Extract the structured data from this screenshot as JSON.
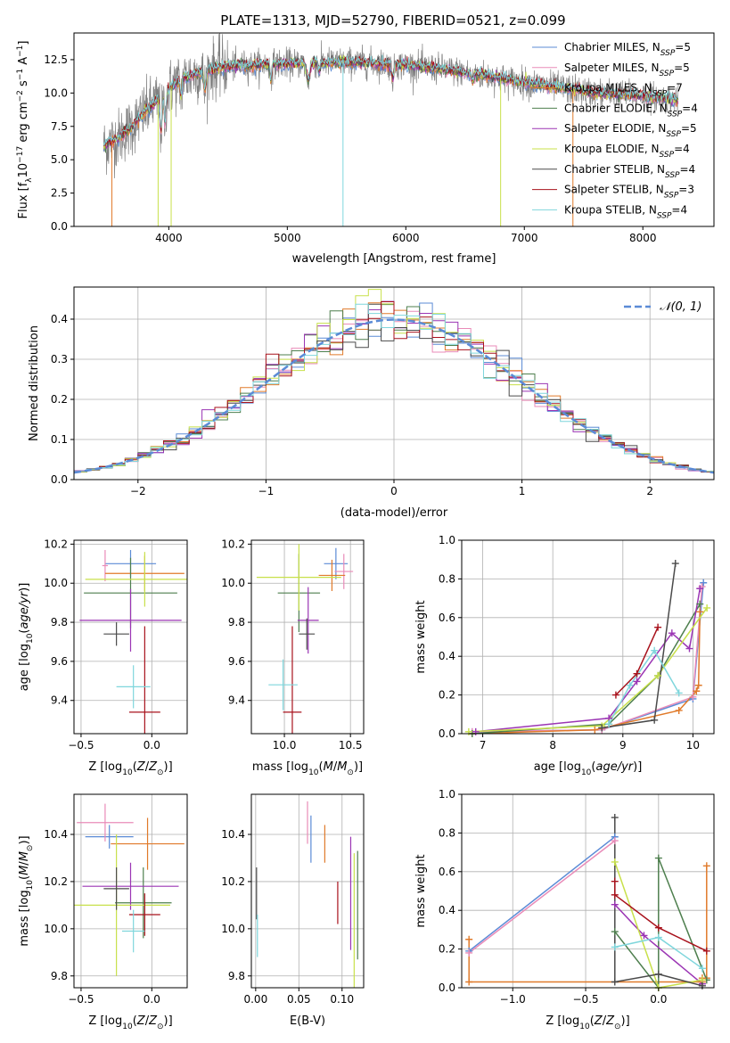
{
  "figure_title": "PLATE=1313, MJD=52790, FIBERID=0521, z=0.099",
  "colors": {
    "Chabrier MILES": "#5b8bd6",
    "Salpeter MILES": "#e98bb8",
    "Kroupa MILES": "#e07a2a",
    "Chabrier ELODIE": "#4e7f4e",
    "Salpeter ELODIE": "#9b35b4",
    "Kroupa ELODIE": "#c8e04a",
    "Chabrier STELIB": "#4a4a4a",
    "Salpeter STELIB": "#a8121c",
    "Kroupa STELIB": "#7fd6dc",
    "gaussian": "#5b8bd6"
  },
  "chart_data": [
    {
      "id": "spectrum",
      "type": "line",
      "title": "PLATE=1313, MJD=52790, FIBERID=0521, z=0.099",
      "xlabel": "wavelength [Angstrom, rest frame]",
      "ylabel": "Flux [fλ10⁻¹⁷ erg cm⁻² s⁻¹ A⁻¹]",
      "xlim": [
        3200,
        8600
      ],
      "ylim": [
        0,
        14.5
      ],
      "xticks": [
        4000,
        5000,
        6000,
        7000,
        8000
      ],
      "yticks": [
        0.0,
        2.5,
        5.0,
        7.5,
        10.0,
        12.5
      ],
      "xtick_labels": [
        "4000",
        "5000",
        "6000",
        "7000",
        "8000"
      ],
      "ytick_labels": [
        "0.0",
        "2.5",
        "5.0",
        "7.5",
        "10.0",
        "12.5"
      ],
      "grid": false,
      "legend_position": "right",
      "continuum": {
        "x": [
          3450,
          3600,
          3700,
          3800,
          3900,
          4000,
          4100,
          4300,
          4500,
          4700,
          5000,
          5300,
          5600,
          6000,
          6300,
          6600,
          7000,
          7300,
          7600,
          8000,
          8300
        ],
        "y": [
          6.0,
          6.8,
          7.6,
          8.6,
          9.4,
          10.3,
          11.0,
          11.7,
          12.0,
          12.1,
          12.2,
          12.3,
          12.3,
          12.1,
          11.8,
          11.4,
          10.8,
          10.4,
          10.0,
          9.8,
          9.5
        ]
      },
      "series": [
        {
          "name": "Chabrier MILES",
          "legend": "Chabrier MILES, N_SSP=5"
        },
        {
          "name": "Salpeter MILES",
          "legend": "Salpeter MILES, N_SSP=5"
        },
        {
          "name": "Kroupa MILES",
          "legend": "Kroupa MILES, N_SSP=7"
        },
        {
          "name": "Chabrier ELODIE",
          "legend": "Chabrier ELODIE, N_SSP=4"
        },
        {
          "name": "Salpeter ELODIE",
          "legend": "Salpeter ELODIE, N_SSP=5"
        },
        {
          "name": "Kroupa ELODIE",
          "legend": "Kroupa ELODIE, N_SSP=4"
        },
        {
          "name": "Chabrier STELIB",
          "legend": "Chabrier STELIB, N_SSP=4"
        },
        {
          "name": "Salpeter STELIB",
          "legend": "Salpeter STELIB, N_SSP=3"
        },
        {
          "name": "Kroupa STELIB",
          "legend": "Kroupa STELIB, N_SSP=4"
        }
      ],
      "drops": [
        {
          "x": 3520,
          "series": "Kroupa MILES"
        },
        {
          "x": 3910,
          "series": "Kroupa ELODIE"
        },
        {
          "x": 4020,
          "series": "Kroupa ELODIE"
        },
        {
          "x": 5470,
          "series": "Kroupa STELIB"
        },
        {
          "x": 6800,
          "series": "Kroupa ELODIE"
        },
        {
          "x": 7410,
          "series": "Kroupa MILES"
        }
      ]
    },
    {
      "id": "residuals",
      "type": "histogram",
      "xlabel": "(data-model)/error",
      "ylabel": "Normed distribution",
      "xlim": [
        -2.5,
        2.5
      ],
      "ylim": [
        0,
        0.48
      ],
      "xticks": [
        -2,
        -1,
        0,
        1,
        2
      ],
      "yticks": [
        0.0,
        0.1,
        0.2,
        0.3,
        0.4
      ],
      "xtick_labels": [
        "−2",
        "−1",
        "0",
        "1",
        "2"
      ],
      "ytick_labels": [
        "0.0",
        "0.1",
        "0.2",
        "0.3",
        "0.4"
      ],
      "grid": true,
      "legend": "𝒩(0, 1)",
      "legend_position": "top-right",
      "bin_width": 0.1,
      "gaussian": {
        "mean": 0,
        "sigma": 1
      }
    },
    {
      "id": "age-vs-Z",
      "type": "errorbar",
      "xlabel": "Z [log10(Z/Z⊙)]",
      "ylabel": "age [log10(age/yr)]",
      "xlim": [
        -0.55,
        0.25
      ],
      "ylim": [
        9.23,
        10.22
      ],
      "xticks": [
        -0.5,
        0.0
      ],
      "yticks": [
        9.4,
        9.6,
        9.8,
        10.0,
        10.2
      ],
      "xtick_labels": [
        "−0.5",
        "0.0"
      ],
      "ytick_labels": [
        "9.4",
        "9.6",
        "9.8",
        "10.0",
        "10.2"
      ],
      "grid": true,
      "points": [
        {
          "series": "Chabrier MILES",
          "x": -0.15,
          "xerr": 0.18,
          "y": 10.1,
          "yerr": 0.07
        },
        {
          "series": "Salpeter MILES",
          "x": -0.33,
          "xerr": 0.02,
          "y": 10.09,
          "yerr": 0.08
        },
        {
          "series": "Kroupa MILES",
          "x": -0.05,
          "xerr": 0.28,
          "y": 10.05,
          "yerr": 0.09
        },
        {
          "series": "Chabrier ELODIE",
          "x": -0.15,
          "xerr": 0.33,
          "y": 9.95,
          "yerr": 0.18
        },
        {
          "series": "Salpeter ELODIE",
          "x": -0.15,
          "xerr": 0.36,
          "y": 9.81,
          "yerr": 0.16
        },
        {
          "series": "Kroupa ELODIE",
          "x": -0.05,
          "xerr": 0.42,
          "y": 10.02,
          "yerr": 0.14
        },
        {
          "series": "Chabrier STELIB",
          "x": -0.25,
          "xerr": 0.09,
          "y": 9.74,
          "yerr": 0.06
        },
        {
          "series": "Salpeter STELIB",
          "x": -0.05,
          "xerr": 0.11,
          "y": 9.34,
          "yerr": 0.44
        },
        {
          "series": "Kroupa STELIB",
          "x": -0.13,
          "xerr": 0.12,
          "y": 9.47,
          "yerr": 0.11
        }
      ]
    },
    {
      "id": "age-vs-mass",
      "type": "errorbar",
      "xlabel": "mass [log10(M/M⊙)]",
      "ylabel": "",
      "xlim": [
        9.75,
        10.6
      ],
      "ylim": [
        9.23,
        10.22
      ],
      "xticks": [
        10.0,
        10.5
      ],
      "yticks": [
        9.4,
        9.6,
        9.8,
        10.0,
        10.2
      ],
      "xtick_labels": [
        "10.0",
        "10.5"
      ],
      "ytick_labels": [
        "9.4",
        "9.6",
        "9.8",
        "10.0",
        "10.2"
      ],
      "grid": true,
      "points": [
        {
          "series": "Chabrier MILES",
          "x": 10.39,
          "xerr": 0.09,
          "y": 10.1,
          "yerr": 0.08
        },
        {
          "series": "Salpeter MILES",
          "x": 10.45,
          "xerr": 0.07,
          "y": 10.06,
          "yerr": 0.09
        },
        {
          "series": "Kroupa MILES",
          "x": 10.36,
          "xerr": 0.1,
          "y": 10.04,
          "yerr": 0.08
        },
        {
          "series": "Chabrier ELODIE",
          "x": 10.11,
          "xerr": 0.16,
          "y": 9.95,
          "yerr": 0.2
        },
        {
          "series": "Salpeter ELODIE",
          "x": 10.18,
          "xerr": 0.08,
          "y": 9.81,
          "yerr": 0.17
        },
        {
          "series": "Kroupa ELODIE",
          "x": 10.11,
          "xerr": 0.32,
          "y": 10.03,
          "yerr": 0.17
        },
        {
          "series": "Chabrier STELIB",
          "x": 10.17,
          "xerr": 0.06,
          "y": 9.74,
          "yerr": 0.08
        },
        {
          "series": "Salpeter STELIB",
          "x": 10.06,
          "xerr": 0.07,
          "y": 9.34,
          "yerr": 0.44
        },
        {
          "series": "Kroupa STELIB",
          "x": 9.99,
          "xerr": 0.11,
          "y": 9.48,
          "yerr": 0.13
        }
      ]
    },
    {
      "id": "weight-vs-age",
      "type": "line",
      "xlabel": "age [log10(age/yr)]",
      "ylabel": "mass weight",
      "xlim": [
        6.7,
        10.3
      ],
      "ylim": [
        0,
        1.0
      ],
      "xticks": [
        7,
        8,
        9,
        10
      ],
      "yticks": [
        0.0,
        0.2,
        0.4,
        0.6,
        0.8,
        1.0
      ],
      "xtick_labels": [
        "7",
        "8",
        "9",
        "10"
      ],
      "ytick_labels": [
        "0.0",
        "0.2",
        "0.4",
        "0.6",
        "0.8",
        "1.0"
      ],
      "grid": true,
      "series": [
        {
          "name": "Chabrier MILES",
          "x": [
            6.85,
            8.7,
            10.0,
            10.15
          ],
          "y": [
            0.01,
            0.02,
            0.18,
            0.78
          ]
        },
        {
          "name": "Salpeter MILES",
          "x": [
            6.85,
            8.7,
            10.0,
            10.13
          ],
          "y": [
            0.01,
            0.02,
            0.19,
            0.76
          ]
        },
        {
          "name": "Kroupa MILES",
          "x": [
            6.85,
            8.6,
            9.8,
            10.05,
            10.08,
            10.1
          ],
          "y": [
            0.0,
            0.02,
            0.12,
            0.22,
            0.25,
            0.63
          ]
        },
        {
          "name": "Chabrier ELODIE",
          "x": [
            6.85,
            8.8,
            9.5,
            10.1
          ],
          "y": [
            0.0,
            0.05,
            0.3,
            0.67
          ]
        },
        {
          "name": "Salpeter ELODIE",
          "x": [
            6.9,
            8.8,
            9.2,
            9.7,
            9.95,
            10.1
          ],
          "y": [
            0.01,
            0.08,
            0.27,
            0.52,
            0.44,
            0.75
          ]
        },
        {
          "name": "Kroupa ELODIE",
          "x": [
            6.8,
            8.7,
            9.5,
            10.2
          ],
          "y": [
            0.01,
            0.04,
            0.3,
            0.65
          ]
        },
        {
          "name": "Chabrier STELIB",
          "x": [
            8.7,
            9.45,
            9.75
          ],
          "y": [
            0.03,
            0.07,
            0.88
          ]
        },
        {
          "name": "Salpeter STELIB",
          "x": [
            8.9,
            9.2,
            9.5
          ],
          "y": [
            0.2,
            0.31,
            0.55
          ]
        },
        {
          "name": "Kroupa STELIB",
          "x": [
            8.8,
            9.1,
            9.45,
            9.8
          ],
          "y": [
            0.05,
            0.25,
            0.43,
            0.21
          ]
        }
      ]
    },
    {
      "id": "mass-vs-Z",
      "type": "errorbar",
      "xlabel": "Z [log10(Z/Z⊙)]",
      "ylabel": "mass [log10(M/M⊙)]",
      "xlim": [
        -0.55,
        0.25
      ],
      "ylim": [
        9.75,
        10.57
      ],
      "xticks": [
        -0.5,
        0.0
      ],
      "yticks": [
        9.8,
        10.0,
        10.2,
        10.4
      ],
      "xtick_labels": [
        "−0.5",
        "0.0"
      ],
      "ytick_labels": [
        "9.8",
        "10.0",
        "10.2",
        "10.4"
      ],
      "grid": true,
      "points": [
        {
          "series": "Chabrier MILES",
          "x": -0.3,
          "xerr": 0.17,
          "y": 10.39,
          "yerr": 0.05
        },
        {
          "series": "Salpeter MILES",
          "x": -0.33,
          "xerr": 0.2,
          "y": 10.45,
          "yerr": 0.08
        },
        {
          "series": "Kroupa MILES",
          "x": -0.03,
          "xerr": 0.26,
          "y": 10.36,
          "yerr": 0.11
        },
        {
          "series": "Chabrier ELODIE",
          "x": -0.06,
          "xerr": 0.2,
          "y": 10.11,
          "yerr": 0.15
        },
        {
          "series": "Salpeter ELODIE",
          "x": -0.15,
          "xerr": 0.34,
          "y": 10.18,
          "yerr": 0.1
        },
        {
          "series": "Kroupa ELODIE",
          "x": -0.25,
          "xerr": 0.38,
          "y": 10.1,
          "yerr": 0.3
        },
        {
          "series": "Chabrier STELIB",
          "x": -0.25,
          "xerr": 0.09,
          "y": 10.17,
          "yerr": 0.09
        },
        {
          "series": "Salpeter STELIB",
          "x": -0.05,
          "xerr": 0.11,
          "y": 10.06,
          "yerr": 0.09
        },
        {
          "series": "Kroupa STELIB",
          "x": -0.13,
          "xerr": 0.08,
          "y": 9.99,
          "yerr": 0.09
        }
      ]
    },
    {
      "id": "mass-vs-EBV",
      "type": "errorbar",
      "xlabel": "E(B-V)",
      "ylabel": "",
      "xlim": [
        -0.005,
        0.125
      ],
      "ylim": [
        9.75,
        10.57
      ],
      "xticks": [
        0.0,
        0.05,
        0.1
      ],
      "yticks": [
        9.8,
        10.0,
        10.2,
        10.4
      ],
      "xtick_labels": [
        "0.00",
        "0.05",
        "0.10"
      ],
      "ytick_labels": [
        "9.8",
        "10.0",
        "10.2",
        "10.4"
      ],
      "grid": true,
      "points": [
        {
          "series": "Chabrier MILES",
          "x": 0.064,
          "y": 10.38,
          "yerr": 0.1
        },
        {
          "series": "Salpeter MILES",
          "x": 0.06,
          "y": 10.45,
          "yerr": 0.09
        },
        {
          "series": "Kroupa MILES",
          "x": 0.08,
          "y": 10.36,
          "yerr": 0.08
        },
        {
          "series": "Chabrier ELODIE",
          "x": 0.118,
          "y": 10.1,
          "yerr": 0.23
        },
        {
          "series": "Salpeter ELODIE",
          "x": 0.11,
          "y": 10.15,
          "yerr": 0.24
        },
        {
          "series": "Kroupa ELODIE",
          "x": 0.114,
          "y": 10.02,
          "yerr": 0.3
        },
        {
          "series": "Chabrier STELIB",
          "x": 0.001,
          "y": 10.15,
          "yerr": 0.11
        },
        {
          "series": "Salpeter STELIB",
          "x": 0.095,
          "y": 10.11,
          "yerr": 0.09
        },
        {
          "series": "Kroupa STELIB",
          "x": 0.002,
          "y": 9.97,
          "yerr": 0.09
        }
      ]
    },
    {
      "id": "weight-vs-Z",
      "type": "line",
      "xlabel": "Z [log10(Z/Z⊙)]",
      "ylabel": "mass weight",
      "xlim": [
        -1.35,
        0.38
      ],
      "ylim": [
        0,
        1.0
      ],
      "xticks": [
        -1.0,
        -0.5,
        0.0
      ],
      "yticks": [
        0.0,
        0.2,
        0.4,
        0.6,
        0.8,
        1.0
      ],
      "xtick_labels": [
        "−1.0",
        "−0.5",
        "0.0"
      ],
      "ytick_labels": [
        "0.0",
        "0.2",
        "0.4",
        "0.6",
        "0.8",
        "1.0"
      ],
      "grid": true,
      "series": [
        {
          "name": "Chabrier MILES",
          "x": [
            -1.3,
            -0.3
          ],
          "y": [
            0.19,
            0.78
          ]
        },
        {
          "name": "Salpeter MILES",
          "x": [
            -1.3,
            -0.3
          ],
          "y": [
            0.18,
            0.76
          ]
        },
        {
          "name": "Kroupa MILES",
          "x": [
            -1.3,
            -1.3,
            0.3,
            0.3,
            0.33,
            0.33
          ],
          "y": [
            0.25,
            0.03,
            0.03,
            0.05,
            0.05,
            0.63
          ]
        },
        {
          "name": "Chabrier ELODIE",
          "x": [
            -0.3,
            0.0,
            0.0,
            0.33
          ],
          "y": [
            0.29,
            0.0,
            0.67,
            0.04
          ]
        },
        {
          "name": "Salpeter ELODIE",
          "x": [
            -0.3,
            -0.1,
            0.3
          ],
          "y": [
            0.43,
            0.27,
            0.02
          ]
        },
        {
          "name": "Kroupa ELODIE",
          "x": [
            -0.3,
            0.0,
            0.3
          ],
          "y": [
            0.65,
            0.0,
            0.04
          ]
        },
        {
          "name": "Chabrier STELIB",
          "x": [
            -0.3,
            -0.3,
            0.0,
            0.3
          ],
          "y": [
            0.88,
            0.03,
            0.07,
            0.01
          ]
        },
        {
          "name": "Salpeter STELIB",
          "x": [
            -0.3,
            -0.3,
            0.0,
            0.33
          ],
          "y": [
            0.55,
            0.48,
            0.31,
            0.19
          ]
        },
        {
          "name": "Kroupa STELIB",
          "x": [
            -0.3,
            0.0,
            0.3
          ],
          "y": [
            0.21,
            0.26,
            0.1
          ]
        }
      ]
    }
  ]
}
